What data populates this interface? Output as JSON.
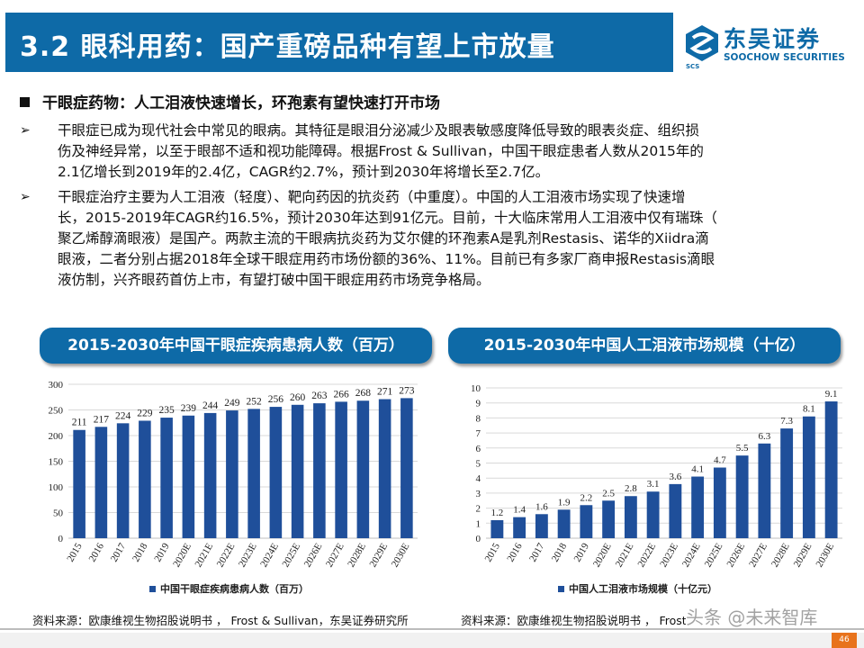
{
  "header": {
    "title": "3.2 眼科用药：国产重磅品种有望上市放量"
  },
  "logo": {
    "cn": "东吴证券",
    "en": "SOOCHOW SECURITIES",
    "abbr": "SCS"
  },
  "section": {
    "heading": "干眼症药物：人工泪液快速增长，环孢素有望快速打开市场"
  },
  "paragraphs": [
    {
      "bullet": "➢",
      "lines": [
        "干眼症已成为现代社会中常见的眼病。其特征是眼泪分泌减少及眼表敏感度降低导致的眼表炎症、组织损",
        "伤及神经异常，以至于眼部不适和视功能障碍。根据Frost & Sullivan，中国干眼症患者人数从2015年的",
        "2.1亿增长到2019年的2.4亿，CAGR约2.7%，预计到2030年将增长至2.7亿。"
      ]
    },
    {
      "bullet": "➢",
      "lines": [
        "干眼症治疗主要为人工泪液（轻度）、靶向药因的抗炎药（中重度）。中国的人工泪液市场实现了快速增",
        "长，2015-2019年CAGR约16.5%，预计2030年达到91亿元。目前，十大临床常用人工泪液中仅有瑞珠（",
        "聚乙烯醇滴眼液）是国产。两款主流的干眼病抗炎药为艾尔健的环孢素A是乳剂Restasis、诺华的Xiidra滴",
        "眼液，二者分别占据2018年全球干眼症用药市场份额的36%、11%。目前已有多家厂商申报Restasis滴眼",
        "液仿制，兴齐眼药首仿上市，有望打破中国干眼症用药市场竞争格局。"
      ]
    }
  ],
  "pills": {
    "left": "2015-2030年中国干眼症疾病患病人数（百万）",
    "right": "2015-2030年中国人工泪液市场规模（十亿）"
  },
  "chart_data": [
    {
      "type": "bar",
      "title": "2015-2030年中国干眼症疾病患病人数（百万）",
      "categories": [
        "2015",
        "2016",
        "2017",
        "2018",
        "2019",
        "2020E",
        "2021E",
        "2022E",
        "2023E",
        "2024E",
        "2025E",
        "2026E",
        "2027E",
        "2028E",
        "2029E",
        "2030E"
      ],
      "values": [
        211,
        217,
        224,
        229,
        235,
        239,
        244,
        249,
        252,
        256,
        260,
        263,
        266,
        268,
        271,
        273
      ],
      "labels": [
        "211",
        "217",
        "224",
        "229",
        "235",
        "239",
        "244",
        "249",
        "252",
        "256",
        "260",
        "263",
        "266",
        "268",
        "271",
        "273"
      ],
      "yticks": [
        "0",
        "50",
        "100",
        "150",
        "200",
        "250",
        "300"
      ],
      "ylim": [
        0,
        300
      ],
      "legend": "中国干眼症疾病患病人数（百万）",
      "color": "#1f4f9a"
    },
    {
      "type": "bar",
      "title": "2015-2030年中国人工泪液市场规模（十亿）",
      "categories": [
        "2015",
        "2016",
        "2017",
        "2018",
        "2019",
        "2020E",
        "2021E",
        "2022E",
        "2023E",
        "2024E",
        "2025E",
        "2026E",
        "2027E",
        "2028E",
        "2029E",
        "2030E"
      ],
      "values": [
        1.2,
        1.4,
        1.6,
        1.9,
        2.2,
        2.5,
        2.8,
        3.1,
        3.6,
        4.1,
        4.7,
        5.5,
        6.3,
        7.3,
        8.1,
        9.1
      ],
      "labels": [
        "1.2",
        "1.4",
        "1.6",
        "1.9",
        "2.2",
        "2.5",
        "2.8",
        "3.1",
        "3.6",
        "4.1",
        "4.7",
        "5.5",
        "6.3",
        "7.3",
        "8.1",
        "9.1"
      ],
      "yticks": [
        "0",
        "1",
        "2",
        "3",
        "4",
        "5",
        "6",
        "7",
        "8",
        "9",
        "10"
      ],
      "ylim": [
        0,
        10
      ],
      "legend": "中国人工泪液市场规模（十亿元）",
      "color": "#1f4f9a"
    }
  ],
  "sources": {
    "left": "资料来源：欧康维视生物招股说明书 ， Frost & Sullivan，东吴证券研究所",
    "right": "资料来源：欧康维视生物招股说明书 ， Frost & Sullivan，东吴证券研究所"
  },
  "watermark": "头条 @未来智库",
  "page_number": "46"
}
